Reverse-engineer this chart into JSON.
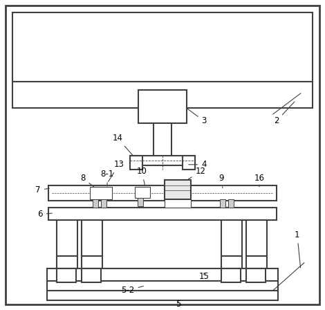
{
  "bg_color": "#ffffff",
  "line_color": "#404040",
  "lw_main": 1.5,
  "lw_thin": 0.8,
  "fig_w": 4.7,
  "fig_h": 4.48
}
